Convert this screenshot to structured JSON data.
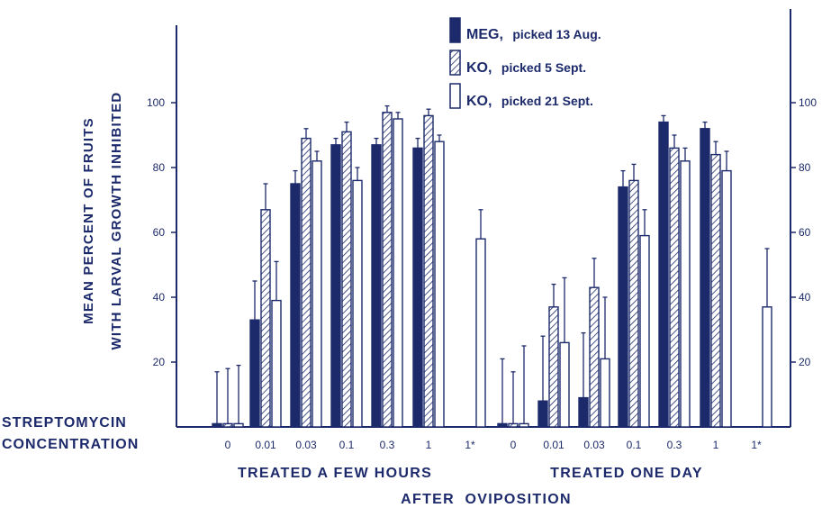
{
  "chart_data": {
    "type": "bar",
    "ylabel_lines": [
      "MEAN PERCENT OF FRUITS",
      "WITH LARVAL GROWTH INHIBITED"
    ],
    "xaxis_title_lines": [
      "STREPTOMYCIN",
      "CONCENTRATION"
    ],
    "ylim": [
      0,
      120
    ],
    "yticks": [
      20,
      40,
      60,
      80,
      100
    ],
    "left_ytick_labels": [
      "20",
      "40",
      "60",
      "80",
      "100"
    ],
    "right_ytick_labels": [
      "20",
      "40",
      "60",
      "80",
      "100"
    ],
    "grid": false,
    "legend_position": "top-right",
    "colors": {
      "ink": "#1c2a6b",
      "background": "#ffffff"
    },
    "series": [
      {
        "name_prefix": "MEG,",
        "name_detail": "picked 13 Aug.",
        "pattern": "solid"
      },
      {
        "name_prefix": "KO,",
        "name_detail": "picked 5 Sept.",
        "pattern": "hatched"
      },
      {
        "name_prefix": "KO,",
        "name_detail": "picked 21 Sept.",
        "pattern": "open"
      }
    ],
    "panels": [
      {
        "title": "TREATED A FEW HOURS",
        "categories": [
          "0",
          "0.01",
          "0.03",
          "0.1",
          "0.3",
          "1",
          "1*"
        ],
        "bars": [
          [
            {
              "value": 1,
              "error": 16
            },
            {
              "value": 1,
              "error": 17
            },
            {
              "value": 1,
              "error": 18
            }
          ],
          [
            {
              "value": 33,
              "error": 12
            },
            {
              "value": 67,
              "error": 8
            },
            {
              "value": 39,
              "error": 12
            }
          ],
          [
            {
              "value": 75,
              "error": 4
            },
            {
              "value": 89,
              "error": 3
            },
            {
              "value": 82,
              "error": 3
            }
          ],
          [
            {
              "value": 87,
              "error": 2
            },
            {
              "value": 91,
              "error": 3
            },
            {
              "value": 76,
              "error": 4
            }
          ],
          [
            {
              "value": 87,
              "error": 2
            },
            {
              "value": 97,
              "error": 2
            },
            {
              "value": 95,
              "error": 2
            }
          ],
          [
            {
              "value": 86,
              "error": 3
            },
            {
              "value": 96,
              "error": 2
            },
            {
              "value": 88,
              "error": 2
            }
          ],
          [
            null,
            null,
            {
              "value": 58,
              "error": 9
            }
          ]
        ]
      },
      {
        "title": "TREATED ONE DAY",
        "categories": [
          "0",
          "0.01",
          "0.03",
          "0.1",
          "0.3",
          "1",
          "1*"
        ],
        "bars": [
          [
            {
              "value": 1,
              "error": 20
            },
            {
              "value": 1,
              "error": 16
            },
            {
              "value": 1,
              "error": 24
            }
          ],
          [
            {
              "value": 8,
              "error": 20
            },
            {
              "value": 37,
              "error": 7
            },
            {
              "value": 26,
              "error": 20
            }
          ],
          [
            {
              "value": 9,
              "error": 20
            },
            {
              "value": 43,
              "error": 9
            },
            {
              "value": 21,
              "error": 19
            }
          ],
          [
            {
              "value": 74,
              "error": 5
            },
            {
              "value": 76,
              "error": 5
            },
            {
              "value": 59,
              "error": 8
            }
          ],
          [
            {
              "value": 94,
              "error": 2
            },
            {
              "value": 86,
              "error": 4
            },
            {
              "value": 82,
              "error": 4
            }
          ],
          [
            {
              "value": 92,
              "error": 2
            },
            {
              "value": 84,
              "error": 4
            },
            {
              "value": 79,
              "error": 6
            }
          ],
          [
            null,
            null,
            {
              "value": 37,
              "error": 18
            }
          ]
        ]
      }
    ],
    "footer": "AFTER  OVIPOSITION"
  }
}
